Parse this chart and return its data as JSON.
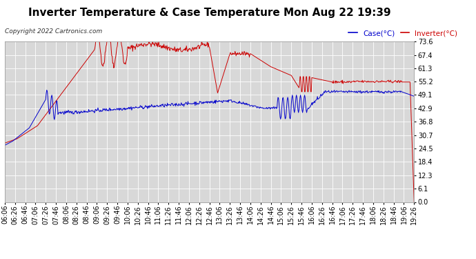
{
  "title": "Inverter Temperature & Case Temperature Mon Aug 22 19:39",
  "copyright": "Copyright 2022 Cartronics.com",
  "legend_case": "Case(°C)",
  "legend_inverter": "Inverter(°C)",
  "y_ticks": [
    0.0,
    6.1,
    12.3,
    18.4,
    24.5,
    30.7,
    36.8,
    42.9,
    49.1,
    55.2,
    61.3,
    67.4,
    73.6
  ],
  "ylim": [
    0.0,
    73.6
  ],
  "background_color": "#ffffff",
  "plot_bg_color": "#d8d8d8",
  "grid_color": "#ffffff",
  "case_color": "#0000cc",
  "inverter_color": "#cc0000",
  "title_fontsize": 11,
  "tick_fontsize": 7,
  "copyright_fontsize": 6.5
}
